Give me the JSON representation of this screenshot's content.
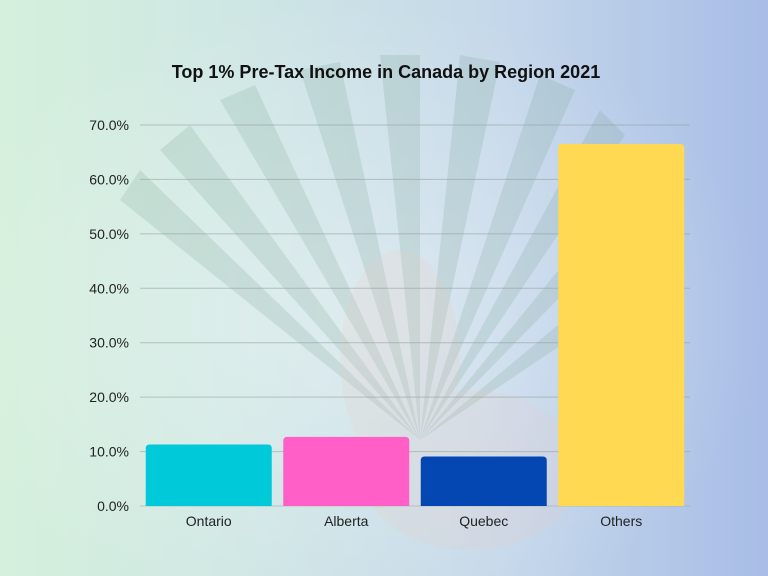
{
  "chart_data": {
    "type": "bar",
    "title": "Top 1% Pre-Tax Income in Canada by Region 2021",
    "categories": [
      "Ontario",
      "Alberta",
      "Quebec",
      "Others"
    ],
    "values": [
      11.3,
      12.7,
      9.1,
      66.5
    ],
    "colors": [
      "#00c9d9",
      "#ff5fc6",
      "#0447b2",
      "#ffd951"
    ],
    "y_ticks": [
      "0.0%",
      "10.0%",
      "20.0%",
      "30.0%",
      "40.0%",
      "50.0%",
      "60.0%",
      "70.0%"
    ],
    "ylim": [
      0,
      70
    ],
    "xlabel": "",
    "ylabel": "",
    "grid": true
  }
}
